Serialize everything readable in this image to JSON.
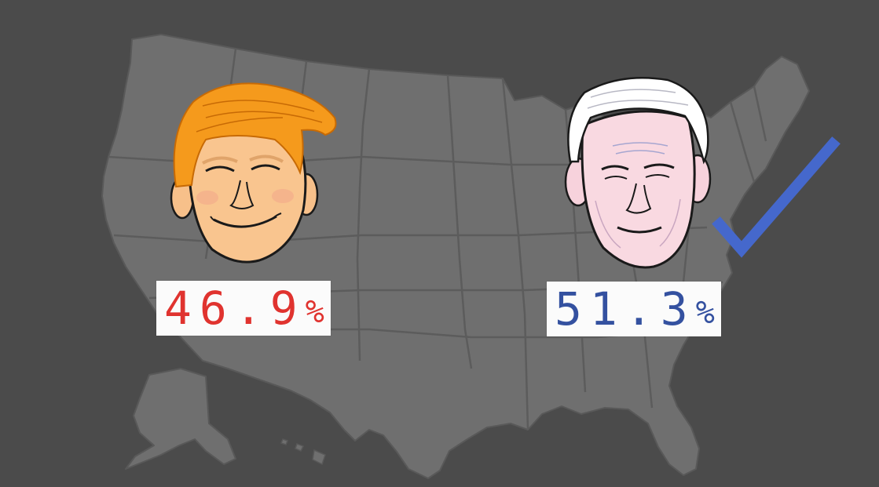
{
  "candidates": [
    {
      "percentage": "46.9",
      "percent_sign": "%",
      "color": "#e0332f",
      "face": "orange-haired-candidate-caricature"
    },
    {
      "percentage": "51.3",
      "percent_sign": "%",
      "color": "#3451a0",
      "face": "white-haired-candidate-caricature",
      "winner": true
    }
  ],
  "colors": {
    "background": "#4b4b4b",
    "map_fill": "#6f6f6f",
    "state_border": "#5a5a5a",
    "checkmark": "#4568cc",
    "label_background": "#fbfbfb"
  },
  "icons": {
    "winner_mark": "checkmark-icon",
    "map": "us-map"
  }
}
